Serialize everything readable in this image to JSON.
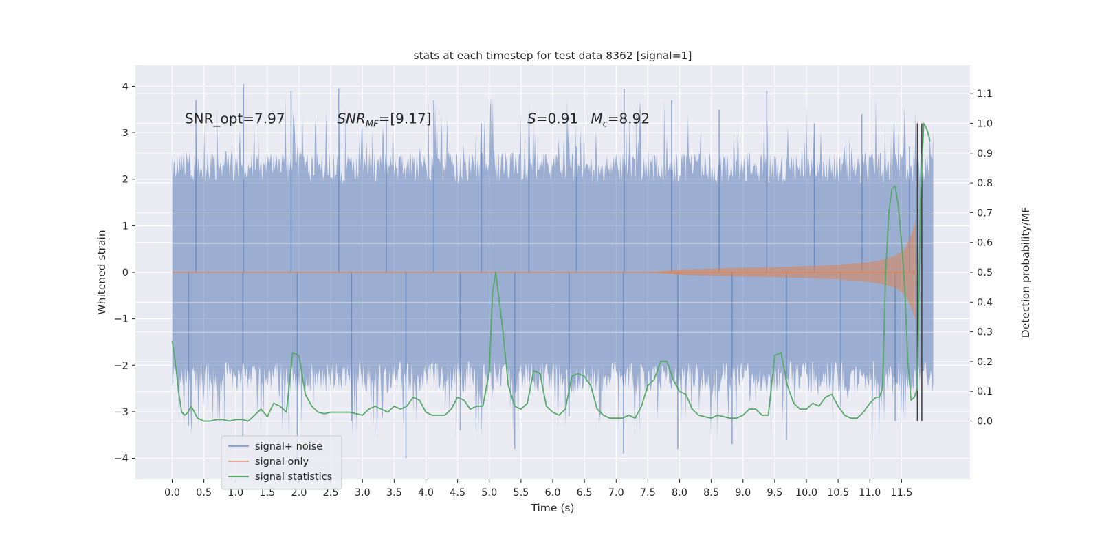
{
  "chart_data": {
    "type": "line",
    "title": "stats at each timestep for test data 8362 [signal=1]",
    "xlabel": "Time (s)",
    "ylabel": "Whitened strain",
    "y2label": "Detection probability/MF",
    "xlim": [
      -0.58,
      12.58
    ],
    "ylim": [
      -4.45,
      4.45
    ],
    "y2lim": [
      -0.195,
      1.195
    ],
    "xticks": [
      0.0,
      0.5,
      1.0,
      1.5,
      2.0,
      2.5,
      3.0,
      3.5,
      4.0,
      4.5,
      5.0,
      5.5,
      6.0,
      6.5,
      7.0,
      7.5,
      8.0,
      8.5,
      9.0,
      9.5,
      10.0,
      10.5,
      11.0,
      11.5
    ],
    "xtick_labels": [
      "0.0",
      "0.5",
      "1.0",
      "1.5",
      "2.0",
      "2.5",
      "3.0",
      "3.5",
      "4.0",
      "4.5",
      "5.0",
      "5.5",
      "6.0",
      "6.5",
      "7.0",
      "7.5",
      "8.0",
      "8.5",
      "9.0",
      "9.5",
      "10.0",
      "10.5",
      "11.0",
      "11.5"
    ],
    "yticks": [
      4,
      3,
      2,
      1,
      0,
      -1,
      -2,
      -3,
      -4
    ],
    "ytick_labels": [
      "4",
      "3",
      "2",
      "1",
      "0",
      "−1",
      "−2",
      "−3",
      "−4"
    ],
    "y2ticks": [
      1.1,
      1.0,
      0.9,
      0.8,
      0.7,
      0.6,
      0.5,
      0.4,
      0.3,
      0.2,
      0.1,
      0.0
    ],
    "y2tick_labels": [
      "1.1",
      "1.0",
      "0.9",
      "0.8",
      "0.7",
      "0.6",
      "0.5",
      "0.4",
      "0.3",
      "0.2",
      "0.1",
      "0.0"
    ],
    "grid": true,
    "legend_position": "lower-left",
    "annotations": [
      {
        "text": "SNR_opt=7.97",
        "x": 0.2,
        "y": 3.2
      },
      {
        "text": "SNR_MF=[9.17]",
        "x": 2.6,
        "y": 3.2
      },
      {
        "text": "S=0.91",
        "x": 5.6,
        "y": 3.2
      },
      {
        "text": "M_c=8.92",
        "x": 6.6,
        "y": 3.2
      }
    ],
    "vertical_lines": [
      11.75,
      11.82
    ],
    "series": [
      {
        "name": "signal+ noise",
        "axis": "left",
        "color": "#4c72b0",
        "x_range": [
          0.0,
          12.0
        ],
        "band_levels": [
          -1.9,
          1.9
        ],
        "spike_peaks": [
          3.7,
          4.05,
          3.9,
          3.95,
          3.3,
          3.7,
          3.2,
          3.4,
          2.7,
          3.95,
          3.7,
          3.5,
          3.9,
          3.2,
          3.4,
          2.7
        ],
        "spike_troughs": [
          -3.3,
          -3.6,
          -4.1,
          -3.2,
          -4.0,
          -3.4,
          -3.8,
          -3.1,
          -3.9,
          -3.8,
          -3.7,
          -3.6,
          -2.9,
          -3.2
        ]
      },
      {
        "name": "signal only",
        "axis": "left",
        "color": "#dd8452",
        "x": [
          0.0,
          7.5,
          8.0,
          8.5,
          9.0,
          9.5,
          10.0,
          10.5,
          11.0,
          11.2,
          11.4,
          11.55,
          11.65,
          11.72,
          11.73
        ],
        "envelope": [
          0.0,
          0.0,
          0.06,
          0.08,
          0.1,
          0.11,
          0.13,
          0.16,
          0.22,
          0.27,
          0.35,
          0.5,
          0.8,
          1.1,
          0.0
        ]
      },
      {
        "name": "signal statistics",
        "axis": "right",
        "color": "#55a868",
        "x": [
          0.0,
          0.05,
          0.1,
          0.15,
          0.2,
          0.25,
          0.3,
          0.35,
          0.4,
          0.5,
          0.6,
          0.7,
          0.8,
          0.9,
          1.0,
          1.1,
          1.2,
          1.3,
          1.4,
          1.5,
          1.6,
          1.7,
          1.8,
          1.9,
          2.0,
          2.1,
          2.2,
          2.3,
          2.4,
          2.5,
          2.6,
          2.7,
          2.8,
          2.9,
          3.0,
          3.1,
          3.2,
          3.3,
          3.4,
          3.5,
          3.6,
          3.7,
          3.8,
          3.9,
          4.0,
          4.1,
          4.2,
          4.3,
          4.4,
          4.5,
          4.6,
          4.7,
          4.8,
          4.9,
          5.0,
          5.05,
          5.1,
          5.2,
          5.3,
          5.4,
          5.5,
          5.6,
          5.7,
          5.8,
          5.9,
          6.0,
          6.1,
          6.2,
          6.3,
          6.4,
          6.5,
          6.6,
          6.7,
          6.8,
          6.9,
          7.0,
          7.1,
          7.2,
          7.3,
          7.4,
          7.5,
          7.6,
          7.7,
          7.8,
          7.9,
          8.0,
          8.1,
          8.2,
          8.3,
          8.4,
          8.5,
          8.6,
          8.7,
          8.8,
          8.9,
          9.0,
          9.1,
          9.2,
          9.3,
          9.4,
          9.5,
          9.6,
          9.7,
          9.8,
          9.9,
          10.0,
          10.1,
          10.2,
          10.3,
          10.4,
          10.5,
          10.6,
          10.7,
          10.8,
          10.9,
          11.0,
          11.05,
          11.1,
          11.15,
          11.2,
          11.25,
          11.3,
          11.35,
          11.4,
          11.45,
          11.5,
          11.55,
          11.6,
          11.65,
          11.7,
          11.75,
          11.8,
          11.85,
          11.9,
          11.95
        ],
        "values": [
          0.27,
          0.2,
          0.1,
          0.03,
          0.02,
          0.03,
          0.05,
          0.03,
          0.01,
          0.0,
          0.0,
          0.005,
          0.005,
          0.0,
          0.005,
          0.005,
          0.0,
          0.02,
          0.04,
          0.015,
          0.06,
          0.05,
          0.03,
          0.23,
          0.22,
          0.09,
          0.05,
          0.03,
          0.025,
          0.03,
          0.03,
          0.03,
          0.03,
          0.025,
          0.02,
          0.04,
          0.05,
          0.04,
          0.03,
          0.05,
          0.04,
          0.05,
          0.08,
          0.07,
          0.03,
          0.02,
          0.02,
          0.02,
          0.04,
          0.08,
          0.07,
          0.04,
          0.05,
          0.05,
          0.17,
          0.43,
          0.5,
          0.33,
          0.12,
          0.05,
          0.04,
          0.06,
          0.17,
          0.16,
          0.05,
          0.03,
          0.02,
          0.04,
          0.15,
          0.16,
          0.15,
          0.12,
          0.04,
          0.02,
          0.01,
          0.01,
          0.01,
          0.02,
          0.01,
          0.05,
          0.12,
          0.14,
          0.2,
          0.2,
          0.14,
          0.1,
          0.09,
          0.04,
          0.02,
          0.015,
          0.01,
          0.02,
          0.015,
          0.01,
          0.01,
          0.02,
          0.04,
          0.04,
          0.02,
          0.02,
          0.22,
          0.23,
          0.12,
          0.06,
          0.04,
          0.04,
          0.06,
          0.05,
          0.08,
          0.09,
          0.05,
          0.02,
          0.01,
          0.01,
          0.03,
          0.06,
          0.07,
          0.08,
          0.08,
          0.11,
          0.5,
          0.7,
          0.78,
          0.79,
          0.72,
          0.6,
          0.45,
          0.2,
          0.07,
          0.08,
          0.11,
          0.75,
          1.0,
          0.98,
          0.94
        ]
      }
    ]
  }
}
